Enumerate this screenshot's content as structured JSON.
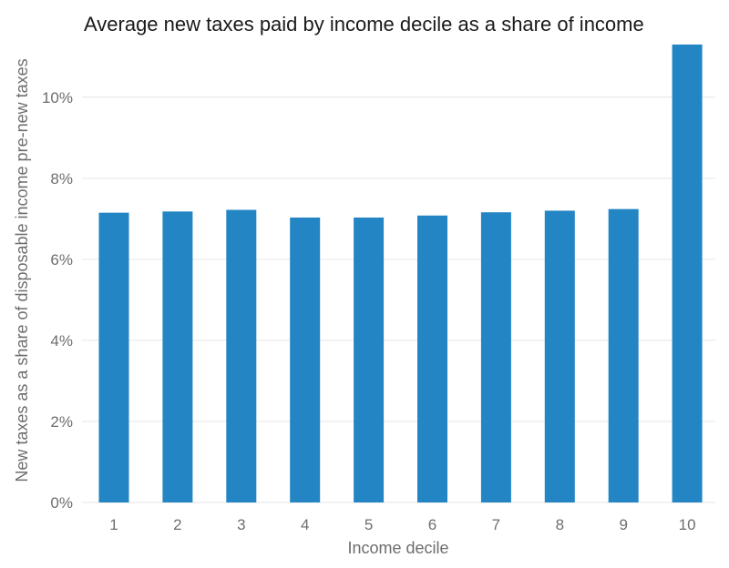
{
  "chart_data": {
    "type": "bar",
    "title": "Average new taxes paid by income decile as a share of income",
    "xlabel": "Income decile",
    "ylabel": "New taxes as a share of disposable income pre-new taxes",
    "categories": [
      "1",
      "2",
      "3",
      "4",
      "5",
      "6",
      "7",
      "8",
      "9",
      "10"
    ],
    "values": [
      7.15,
      7.18,
      7.22,
      7.03,
      7.03,
      7.08,
      7.16,
      7.2,
      7.24,
      11.3
    ],
    "unit": "%",
    "ylim": [
      0,
      11.5
    ],
    "yticks": [
      0,
      2,
      4,
      6,
      8,
      10
    ],
    "ytick_labels": [
      "0%",
      "2%",
      "4%",
      "6%",
      "8%",
      "10%"
    ],
    "grid": true,
    "bar_color": "#2385c4"
  }
}
